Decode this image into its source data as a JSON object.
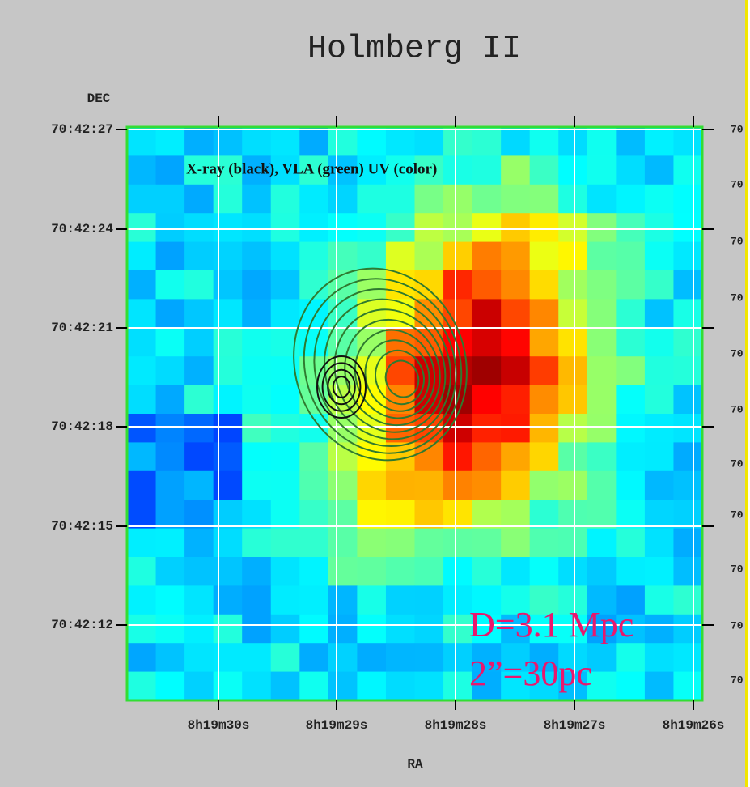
{
  "title": "Holmberg II",
  "y_axis_label": "DEC",
  "x_axis_label": "RA",
  "y_tick_labels": [
    "70:42:27",
    "70:42:24",
    "70:42:21",
    "70:42:18",
    "70:42:15",
    "70:42:12"
  ],
  "x_tick_labels": [
    "8h19m30s",
    "8h19m29s",
    "8h19m28s",
    "8h19m27s",
    "8h19m26s"
  ],
  "right_tick_labels": [
    "70",
    "70",
    "70",
    "70",
    "70",
    "70",
    "70",
    "70",
    "70",
    "70",
    "70"
  ],
  "legend_note": "X-ray (black), VLA (green) UV (color)",
  "annotations": [
    "D=3.1 Mpc",
    "2”=30pc"
  ]
}
